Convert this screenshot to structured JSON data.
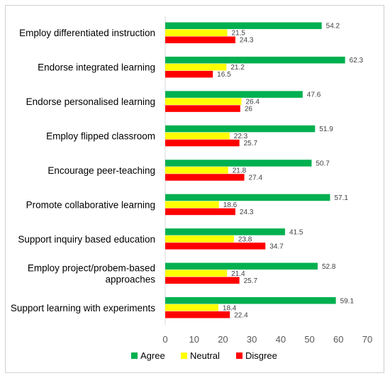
{
  "chart_data": {
    "type": "bar",
    "orientation": "horizontal",
    "categories": [
      [
        "Employ differentiated instruction"
      ],
      [
        "Endorse integrated learning"
      ],
      [
        "Endorse personalised learning"
      ],
      [
        "Employ flipped classroom"
      ],
      [
        "Encourage peer-teaching"
      ],
      [
        "Promote collaborative learning"
      ],
      [
        "Support inquiry based education"
      ],
      [
        "Employ project/probem-based",
        "approaches"
      ],
      [
        "Support learning with experiments"
      ]
    ],
    "series": [
      {
        "name": "Agree",
        "color": "#00b050",
        "values": [
          54.2,
          62.3,
          47.6,
          51.9,
          50.7,
          57.1,
          41.5,
          52.8,
          59.1
        ]
      },
      {
        "name": "Neutral",
        "color": "#ffff00",
        "values": [
          21.5,
          21.2,
          26.4,
          22.3,
          21.8,
          18.6,
          23.8,
          21.4,
          18.4
        ]
      },
      {
        "name": "Disgree",
        "color": "#ff0000",
        "values": [
          24.3,
          16.5,
          26,
          25.7,
          27.4,
          24.3,
          34.7,
          25.7,
          22.4
        ]
      }
    ],
    "xlim": [
      0,
      70
    ],
    "xticks": [
      0,
      10,
      20,
      30,
      40,
      50,
      60,
      70
    ],
    "grid": false,
    "legend": "bottom"
  }
}
